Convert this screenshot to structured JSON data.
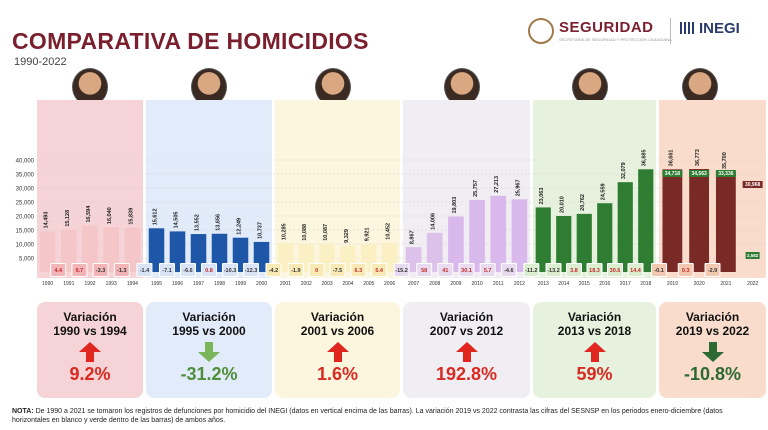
{
  "title": "COMPARATIVA DE HOMICIDIOS",
  "subtitle": "1990-2022",
  "logos": {
    "seguridad": "SEGURIDAD",
    "seguridad_sub": "SECRETARÍA DE SEGURIDAD Y PROTECCIÓN CIUDADANA",
    "inegi": "INEGI"
  },
  "chart_data": {
    "type": "bar",
    "categories": [
      "1990",
      "1991",
      "1992",
      "1993",
      "1994",
      "1995",
      "1996",
      "1997",
      "1998",
      "1999",
      "2000",
      "2001",
      "2002",
      "2003",
      "2004",
      "2005",
      "2006",
      "2007",
      "2008",
      "2009",
      "2010",
      "2011",
      "2012",
      "2013",
      "2014",
      "2015",
      "2016",
      "2017",
      "2018",
      "2019",
      "2020",
      "2021",
      "2022"
    ],
    "values": [
      14493,
      15128,
      16594,
      16040,
      15839,
      15612,
      14505,
      13552,
      13656,
      12249,
      10737,
      10285,
      10088,
      10087,
      9329,
      9921,
      10452,
      8867,
      14006,
      19803,
      25757,
      27213,
      25967,
      23063,
      20010,
      20762,
      24559,
      32079,
      36685,
      36661,
      36773,
      35700,
      null
    ],
    "yoy_variation": [
      "4.4",
      "9.7",
      "-3.3",
      "-1.3",
      "-1.4",
      "-7.1",
      "-6.6",
      "0.8",
      "-10.3",
      "-12.3",
      "-4.2",
      "-1.9",
      "0",
      "-7.5",
      "6.3",
      "5.4",
      "-15.2",
      "58",
      "41",
      "30.1",
      "5.7",
      "-4.6",
      "-11.2",
      "-13.2",
      "3.8",
      "18.3",
      "30.6",
      "14.4",
      "-0.1",
      "0.3",
      "-2.9"
    ],
    "yoy_variation_start": 1,
    "sesnsp_values": {
      "categories": [
        "2019",
        "2020",
        "2021",
        "2022"
      ],
      "values": [
        34718,
        34563,
        33336,
        30968
      ]
    },
    "partial_2022_label": "2,582",
    "ylim": [
      0,
      40000
    ],
    "yticks": [
      "5,000",
      "10,000",
      "15,000",
      "20,000",
      "25,000",
      "30,000",
      "35,000",
      "40,000"
    ],
    "periods": [
      {
        "label_line1": "Variación",
        "label_line2": "1990 vs 1994",
        "change": "9.2%",
        "direction": "up"
      },
      {
        "label_line1": "Variación",
        "label_line2": "1995 vs 2000",
        "change": "-31.2%",
        "direction": "down"
      },
      {
        "label_line1": "Variación",
        "label_line2": "2001 vs 2006",
        "change": "1.6%",
        "direction": "up"
      },
      {
        "label_line1": "Variación",
        "label_line2": "2007 vs 2012",
        "change": "192.8%",
        "direction": "up"
      },
      {
        "label_line1": "Variación",
        "label_line2": "2013 vs 2018",
        "change": "59%",
        "direction": "up"
      },
      {
        "label_line1": "Variación",
        "label_line2": "2019 vs 2022",
        "change": "-10.8%",
        "direction": "down"
      }
    ]
  },
  "colors": {
    "up_arrow": "#e0261f",
    "down_arrow_green": "#7ab55c",
    "down_arrow_dark": "#2d6a33",
    "up_text": "#d92a21",
    "down_text_green": "#4f8f3c",
    "down_text_dark": "#2d6a33"
  },
  "note": {
    "label": "NOTA:",
    "text": "De 1990 a 2021 se tomaron los registros de defunciones por homicidio del INEGI (datos en vertical encima de las barras). La variación 2019 vs 2022 contrasta las cifras del SESNSP en los periodos enero-diciembre (datos horizontales en blanco y verde dentro de las barras) de ambos años."
  }
}
